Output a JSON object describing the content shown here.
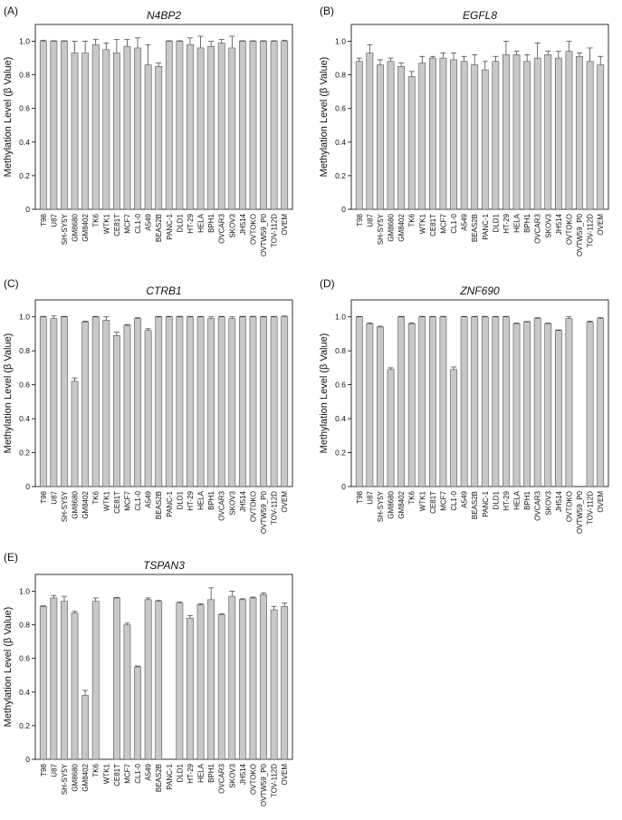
{
  "categories": [
    "T98",
    "U87",
    "SH-SY5Y",
    "GM8680",
    "GM8402",
    "TK6",
    "WTK1",
    "CE81T",
    "MCF7",
    "CL1-0",
    "A549",
    "BEAS2B",
    "PANC-1",
    "DLD1",
    "HT-29",
    "HELA",
    "BPH1",
    "OVCAR3",
    "SKOV3",
    "JH514",
    "OVTOKO",
    "OVTW59_P0",
    "TOV-112D",
    "OVEM"
  ],
  "colors": {
    "bar_fill": "#c8c8c8",
    "bar_stroke": "#555555",
    "axis": "#000000"
  },
  "chart_data": [
    {
      "type": "bar",
      "panel_label": "(A)",
      "title": "N4BP2",
      "ylabel": "Methylation Level (β Value)",
      "ylim": [
        0,
        1.1
      ],
      "yticks": [
        0,
        0.2,
        0.4,
        0.6,
        0.8,
        1.0
      ],
      "ytick_labels": [
        "0",
        "0.2",
        "0.4",
        "0.6",
        "0.8",
        "1.0"
      ],
      "values": [
        1.0,
        1.0,
        1.0,
        0.93,
        0.93,
        0.98,
        0.95,
        0.93,
        0.97,
        0.96,
        0.86,
        0.85,
        1.0,
        1.0,
        0.98,
        0.96,
        0.97,
        0.99,
        0.96,
        1.0,
        1.0,
        1.0,
        1.0,
        1.0
      ],
      "errors": [
        0.005,
        0.003,
        0.003,
        0.07,
        0.07,
        0.03,
        0.04,
        0.08,
        0.04,
        0.06,
        0.12,
        0.02,
        0.003,
        0.003,
        0.04,
        0.07,
        0.03,
        0.02,
        0.07,
        0.003,
        0.003,
        0.003,
        0.003,
        0.005
      ]
    },
    {
      "type": "bar",
      "panel_label": "(B)",
      "title": "EGFL8",
      "ylabel": "Methylation Level (β Value)",
      "ylim": [
        0,
        1.1
      ],
      "yticks": [
        0,
        0.2,
        0.4,
        0.6,
        0.8,
        1.0
      ],
      "ytick_labels": [
        "0",
        "0.2",
        "0.4",
        "0.6",
        "0.8",
        "1.0"
      ],
      "values": [
        0.88,
        0.93,
        0.86,
        0.88,
        0.85,
        0.79,
        0.87,
        0.9,
        0.9,
        0.89,
        0.88,
        0.86,
        0.83,
        0.88,
        0.92,
        0.92,
        0.88,
        0.9,
        0.92,
        0.9,
        0.94,
        0.91,
        0.88,
        0.86
      ],
      "errors": [
        0.02,
        0.05,
        0.03,
        0.02,
        0.02,
        0.03,
        0.04,
        0.01,
        0.03,
        0.04,
        0.03,
        0.06,
        0.05,
        0.03,
        0.08,
        0.02,
        0.04,
        0.09,
        0.02,
        0.04,
        0.06,
        0.02,
        0.08,
        0.05
      ]
    },
    {
      "type": "bar",
      "panel_label": "(C)",
      "title": "CTRB1",
      "ylabel": "Methylation Level (β Value)",
      "ylim": [
        0,
        1.1
      ],
      "yticks": [
        0,
        0.2,
        0.4,
        0.6,
        0.8,
        1.0
      ],
      "ytick_labels": [
        "0",
        "0.2",
        "0.4",
        "0.6",
        "0.8",
        "1.0"
      ],
      "values": [
        1.0,
        0.99,
        1.0,
        0.62,
        0.97,
        1.0,
        0.98,
        0.89,
        0.95,
        0.99,
        0.92,
        1.0,
        1.0,
        1.0,
        1.0,
        1.0,
        0.99,
        1.0,
        0.99,
        1.0,
        1.0,
        1.0,
        1.0,
        1.0
      ],
      "errors": [
        0.003,
        0.015,
        0.003,
        0.02,
        0.005,
        0.003,
        0.02,
        0.02,
        0.005,
        0.005,
        0.01,
        0.003,
        0.003,
        0.003,
        0.003,
        0.003,
        0.01,
        0.003,
        0.01,
        0.003,
        0.003,
        0.003,
        0.003,
        0.005
      ]
    },
    {
      "type": "bar",
      "panel_label": "(D)",
      "title": "ZNF690",
      "ylabel": "Methylation Level (β Value)",
      "ylim": [
        0,
        1.1
      ],
      "yticks": [
        0,
        0.2,
        0.4,
        0.6,
        0.8,
        1.0
      ],
      "ytick_labels": [
        "0",
        "0.2",
        "0.4",
        "0.6",
        "0.8",
        "1.0"
      ],
      "values": [
        1.0,
        0.96,
        0.94,
        0.69,
        1.0,
        0.96,
        1.0,
        1.0,
        1.0,
        0.69,
        1.0,
        1.0,
        1.0,
        1.0,
        1.0,
        0.96,
        0.97,
        0.99,
        0.96,
        0.92,
        0.99,
        0.0,
        0.97,
        0.99
      ],
      "errors": [
        0.003,
        0.005,
        0.005,
        0.01,
        0.003,
        0.005,
        0.003,
        0.003,
        0.003,
        0.015,
        0.003,
        0.003,
        0.003,
        0.003,
        0.003,
        0.003,
        0.003,
        0.005,
        0.003,
        0.003,
        0.01,
        0.0,
        0.005,
        0.005
      ]
    },
    {
      "type": "bar",
      "panel_label": "(E)",
      "title": "TSPAN3",
      "ylabel": "Methylation Level (β Value)",
      "ylim": [
        0,
        1.1
      ],
      "yticks": [
        0,
        0.2,
        0.4,
        0.6,
        0.8,
        1.0
      ],
      "ytick_labels": [
        "0",
        "0.2",
        "0.4",
        "0.6",
        "0.8",
        "1.0"
      ],
      "values": [
        0.91,
        0.96,
        0.94,
        0.87,
        0.38,
        0.94,
        0.0,
        0.96,
        0.8,
        0.55,
        0.95,
        0.94,
        0.0,
        0.93,
        0.84,
        0.92,
        0.95,
        0.86,
        0.97,
        0.95,
        0.96,
        0.98,
        0.89,
        0.91
      ],
      "errors": [
        0.003,
        0.015,
        0.03,
        0.01,
        0.03,
        0.02,
        0.0,
        0.003,
        0.01,
        0.005,
        0.01,
        0.005,
        0.0,
        0.005,
        0.015,
        0.005,
        0.07,
        0.005,
        0.03,
        0.005,
        0.005,
        0.01,
        0.02,
        0.02
      ]
    }
  ]
}
